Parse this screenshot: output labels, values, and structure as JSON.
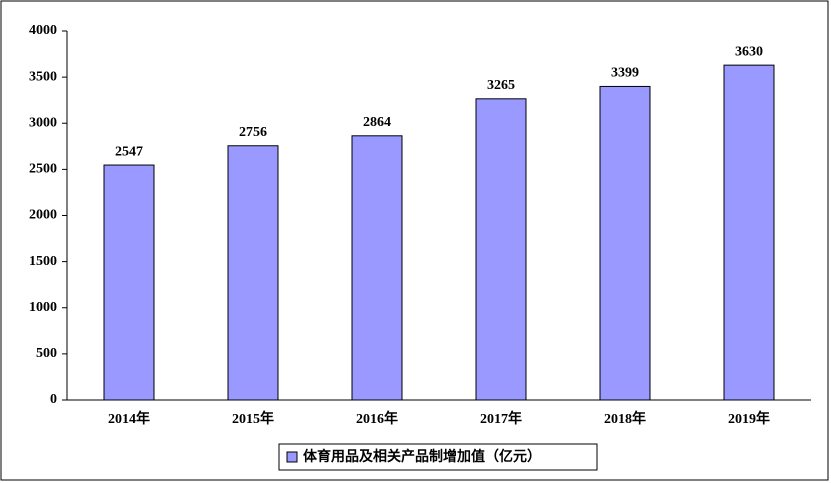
{
  "chart_data": {
    "type": "bar",
    "categories": [
      "2014年",
      "2015年",
      "2016年",
      "2017年",
      "2018年",
      "2019年"
    ],
    "series": [
      {
        "name": "体育用品及相关产品制增加值（亿元）",
        "color": "#9999ff",
        "values": [
          2547,
          2756,
          2864,
          3265,
          3399,
          3630
        ]
      }
    ],
    "ylim": [
      0,
      4000
    ],
    "yticks": [
      0,
      500,
      1000,
      1500,
      2000,
      2500,
      3000,
      3500,
      4000
    ],
    "grid": false,
    "legend": "bottom"
  }
}
